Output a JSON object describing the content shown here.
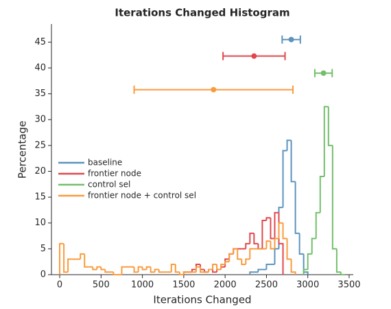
{
  "chart_data": {
    "type": "step_histogram",
    "title": "Iterations Changed Histogram",
    "xlabel": "Iterations Changed",
    "ylabel": "Percentage",
    "xlim": [
      -100,
      3550
    ],
    "ylim": [
      0,
      48.5
    ],
    "xticks": [
      0,
      500,
      1000,
      1500,
      2000,
      2500,
      3000,
      3500
    ],
    "yticks": [
      0,
      5,
      10,
      15,
      20,
      25,
      30,
      35,
      40,
      45
    ],
    "legend": "center left",
    "series": [
      {
        "name": "baseline",
        "color": "#5b93be",
        "bins": [
          2300,
          2350,
          2400,
          2450,
          2500,
          2550,
          2600,
          2650,
          2700,
          2750,
          2800,
          2850,
          2900,
          2950,
          3000
        ],
        "values": [
          0.5,
          0.5,
          1,
          1,
          2,
          2,
          5,
          13,
          24,
          26,
          18,
          8,
          4,
          0.5
        ],
        "mean": 2800,
        "err": 110,
        "err_y": 45.5
      },
      {
        "name": "frontier node",
        "color": "#e0474c",
        "bins": [
          1500,
          1550,
          1600,
          1650,
          1700,
          1750,
          1800,
          1850,
          1900,
          1950,
          2000,
          2050,
          2100,
          2150,
          2200,
          2250,
          2300,
          2350,
          2400,
          2450,
          2500,
          2550,
          2600,
          2650,
          2700
        ],
        "values": [
          0.5,
          0.5,
          1,
          2,
          1,
          0.5,
          1,
          0.5,
          1,
          1.5,
          3,
          4,
          5,
          5,
          5,
          6,
          8,
          6,
          5,
          10.5,
          11,
          7,
          12,
          6
        ],
        "mean": 2350,
        "err": 375,
        "err_y": 42.3
      },
      {
        "name": "control sel",
        "color": "#72bf6a",
        "bins": [
          2950,
          3000,
          3050,
          3100,
          3150,
          3200,
          3250,
          3300,
          3350,
          3400,
          3450
        ],
        "values": [
          1,
          4,
          7,
          12,
          19,
          32.5,
          25,
          5,
          0.5,
          0
        ],
        "mean": 3190,
        "err": 105,
        "err_y": 39
      },
      {
        "name": "frontier node + control sel",
        "color": "#f99b3c",
        "bins": [
          0,
          50,
          100,
          150,
          200,
          250,
          300,
          350,
          400,
          450,
          500,
          550,
          600,
          650,
          700,
          750,
          800,
          850,
          900,
          950,
          1000,
          1050,
          1100,
          1150,
          1200,
          1250,
          1300,
          1350,
          1400,
          1450,
          1500,
          1550,
          1600,
          1650,
          1700,
          1750,
          1800,
          1850,
          1900,
          1950,
          2000,
          2050,
          2100,
          2150,
          2200,
          2250,
          2300,
          2350,
          2400,
          2450,
          2500,
          2550,
          2600,
          2650,
          2700,
          2750,
          2800,
          2850
        ],
        "values": [
          6,
          0.5,
          3,
          3,
          3,
          4,
          1.5,
          1.5,
          1,
          1.5,
          1,
          0.5,
          0.5,
          0,
          0,
          1.5,
          1.5,
          1.5,
          0.5,
          1.5,
          1,
          1.5,
          0.5,
          1,
          0.5,
          0.5,
          0.5,
          2,
          0.5,
          0,
          0.5,
          0.5,
          0.5,
          1.5,
          0.5,
          0.5,
          1,
          2,
          1,
          2,
          2.5,
          4,
          5,
          3,
          2,
          3,
          5,
          5,
          5,
          5,
          6.5,
          5,
          7,
          10,
          7,
          3,
          0.5
        ],
        "mean": 1860,
        "err": 960,
        "err_y": 35.8
      }
    ]
  }
}
